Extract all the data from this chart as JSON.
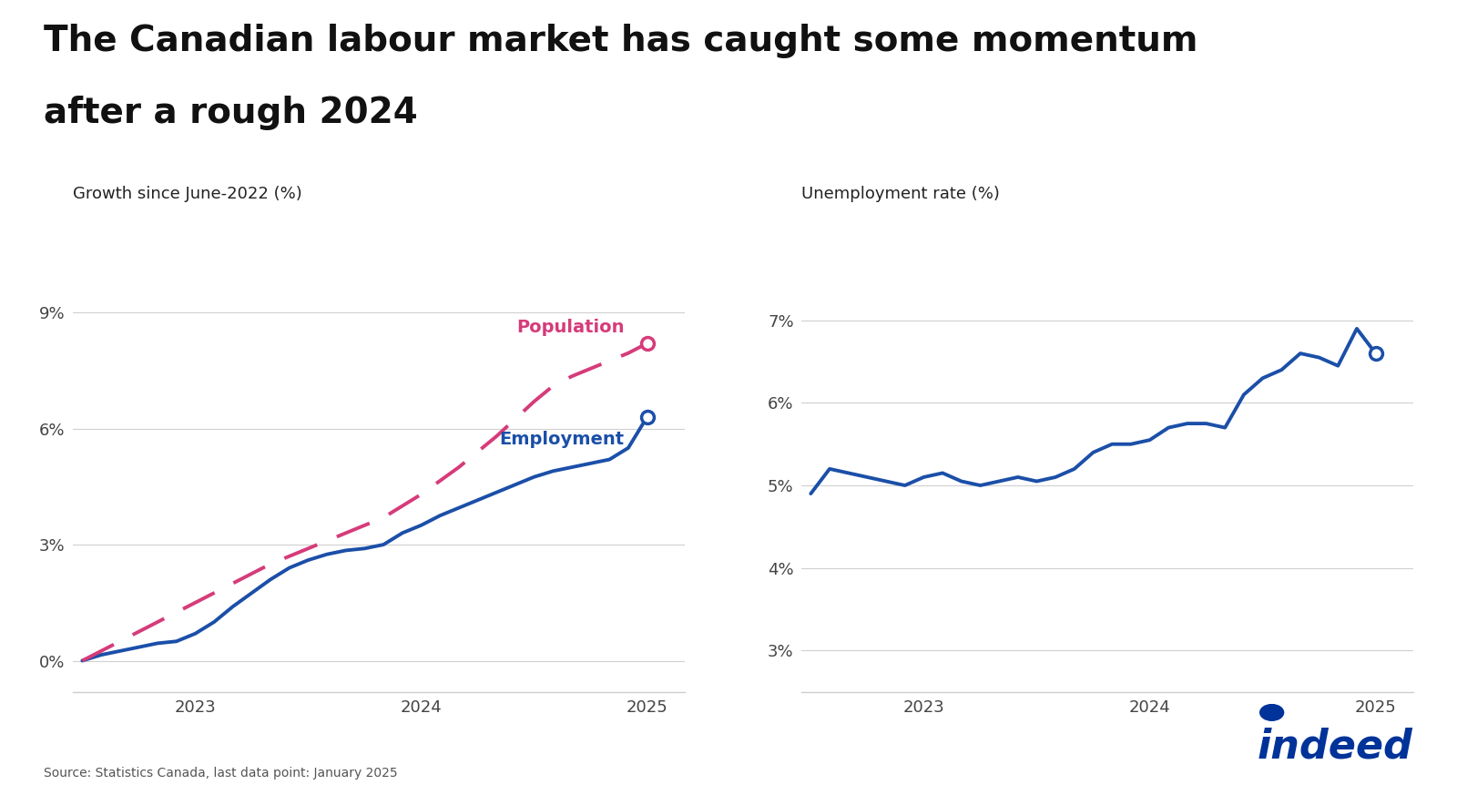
{
  "title_line1": "The Canadian labour market has caught some momentum",
  "title_line2": "after a rough 2024",
  "title_fontsize": 28,
  "title_fontweight": "bold",
  "background_color": "#ffffff",
  "source_text": "Source: Statistics Canada, last data point: January 2025",
  "panel1": {
    "ylabel": "Growth since June-2022 (%)",
    "ylim": [
      -0.8,
      10.5
    ],
    "yticks": [
      0,
      3,
      6,
      9
    ],
    "ytick_labels": [
      "0%",
      "3%",
      "6%",
      "9%"
    ],
    "xlim_months": [
      -0.5,
      32
    ],
    "xtick_positions": [
      6,
      18,
      30
    ],
    "xtick_labels": [
      "2023",
      "2024",
      "2025"
    ],
    "employment_label": "Employment",
    "population_label": "Population",
    "employment_color": "#1b4fa8",
    "population_color": "#d63b7a",
    "employment_data": [
      0.0,
      0.15,
      0.25,
      0.35,
      0.45,
      0.5,
      0.7,
      1.0,
      1.4,
      1.75,
      2.1,
      2.4,
      2.6,
      2.75,
      2.85,
      2.9,
      3.0,
      3.3,
      3.5,
      3.75,
      3.95,
      4.15,
      4.35,
      4.55,
      4.75,
      4.9,
      5.0,
      5.1,
      5.2,
      5.5,
      6.3
    ],
    "population_data": [
      0.0,
      0.25,
      0.5,
      0.75,
      1.0,
      1.25,
      1.5,
      1.75,
      2.0,
      2.25,
      2.5,
      2.7,
      2.9,
      3.1,
      3.3,
      3.5,
      3.7,
      4.0,
      4.3,
      4.65,
      5.0,
      5.4,
      5.8,
      6.25,
      6.7,
      7.1,
      7.35,
      7.55,
      7.75,
      7.95,
      8.2
    ]
  },
  "panel2": {
    "ylabel": "Unemployment rate (%)",
    "ylim": [
      2.5,
      7.8
    ],
    "yticks": [
      3,
      4,
      5,
      6,
      7
    ],
    "ytick_labels": [
      "3%",
      "4%",
      "5%",
      "6%",
      "7%"
    ],
    "xlim_months": [
      -0.5,
      32
    ],
    "xtick_positions": [
      6,
      18,
      30
    ],
    "xtick_labels": [
      "2023",
      "2024",
      "2025"
    ],
    "line_color": "#1b4fa8",
    "unemp_data": [
      4.9,
      5.2,
      5.15,
      5.1,
      5.05,
      5.0,
      5.1,
      5.15,
      5.05,
      5.0,
      5.05,
      5.1,
      5.05,
      5.1,
      5.2,
      5.4,
      5.5,
      5.5,
      5.55,
      5.7,
      5.75,
      5.75,
      5.7,
      6.1,
      6.3,
      6.4,
      6.6,
      6.55,
      6.45,
      6.9,
      6.6
    ]
  },
  "indeed_color": "#003399",
  "grid_color": "#d0d0d0",
  "axis_color": "#cccccc",
  "label_fontsize": 13,
  "tick_fontsize": 13,
  "annotation_fontsize": 14
}
